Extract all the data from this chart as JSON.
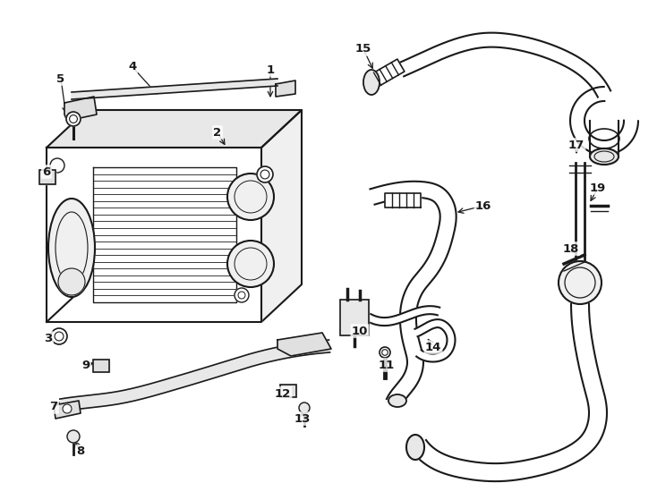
{
  "bg_color": "#ffffff",
  "line_color": "#1a1a1a",
  "figsize": [
    7.34,
    5.4
  ],
  "dpi": 100,
  "callouts": [
    [
      "1",
      302,
      78,
      302,
      112
    ],
    [
      "2",
      243,
      148,
      253,
      165
    ],
    [
      "3",
      54,
      378,
      68,
      375
    ],
    [
      "4",
      148,
      75,
      178,
      108
    ],
    [
      "5",
      68,
      88,
      74,
      130
    ],
    [
      "6",
      52,
      192,
      62,
      198
    ],
    [
      "7",
      60,
      455,
      72,
      448
    ],
    [
      "8",
      90,
      505,
      82,
      490
    ],
    [
      "9",
      96,
      408,
      108,
      405
    ],
    [
      "10",
      402,
      370,
      398,
      360
    ],
    [
      "11",
      432,
      408,
      428,
      398
    ],
    [
      "12",
      316,
      440,
      322,
      432
    ],
    [
      "13",
      338,
      468,
      340,
      456
    ],
    [
      "14",
      484,
      388,
      476,
      376
    ],
    [
      "15",
      406,
      55,
      418,
      80
    ],
    [
      "16",
      540,
      230,
      508,
      238
    ],
    [
      "17",
      644,
      162,
      644,
      175
    ],
    [
      "18",
      638,
      278,
      648,
      285
    ],
    [
      "19",
      668,
      210,
      658,
      228
    ]
  ]
}
